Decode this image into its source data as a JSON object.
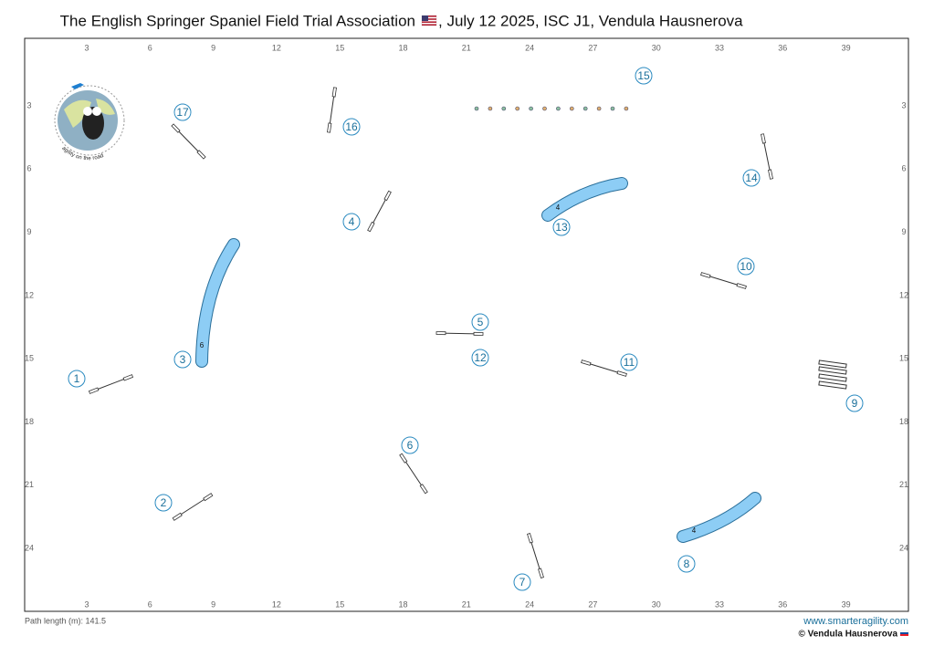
{
  "header": {
    "title_main": "The English Springer Spaniel Field Trial Association",
    "title_rest": ", July 12 2025, ISC J1, Vendula Hausnerova"
  },
  "ruler": {
    "x_labels": [
      "3",
      "6",
      "9",
      "12",
      "15",
      "18",
      "21",
      "24",
      "27",
      "30",
      "33",
      "36",
      "39"
    ],
    "y_labels": [
      "3",
      "6",
      "9",
      "12",
      "15",
      "18",
      "21",
      "24"
    ]
  },
  "course": {
    "numbers": [
      "1",
      "2",
      "3",
      "4",
      "5",
      "6",
      "7",
      "8",
      "9",
      "10",
      "11",
      "12",
      "13",
      "14",
      "15",
      "16",
      "17"
    ],
    "tunnel_labels": [
      "6",
      "4",
      "4"
    ]
  },
  "logo": {
    "text": "agility on the road"
  },
  "footer": {
    "path_length": "Path length (m): 141.5",
    "website": "www.smarteragility.com",
    "copyright": "© Vendula Hausnerova"
  }
}
